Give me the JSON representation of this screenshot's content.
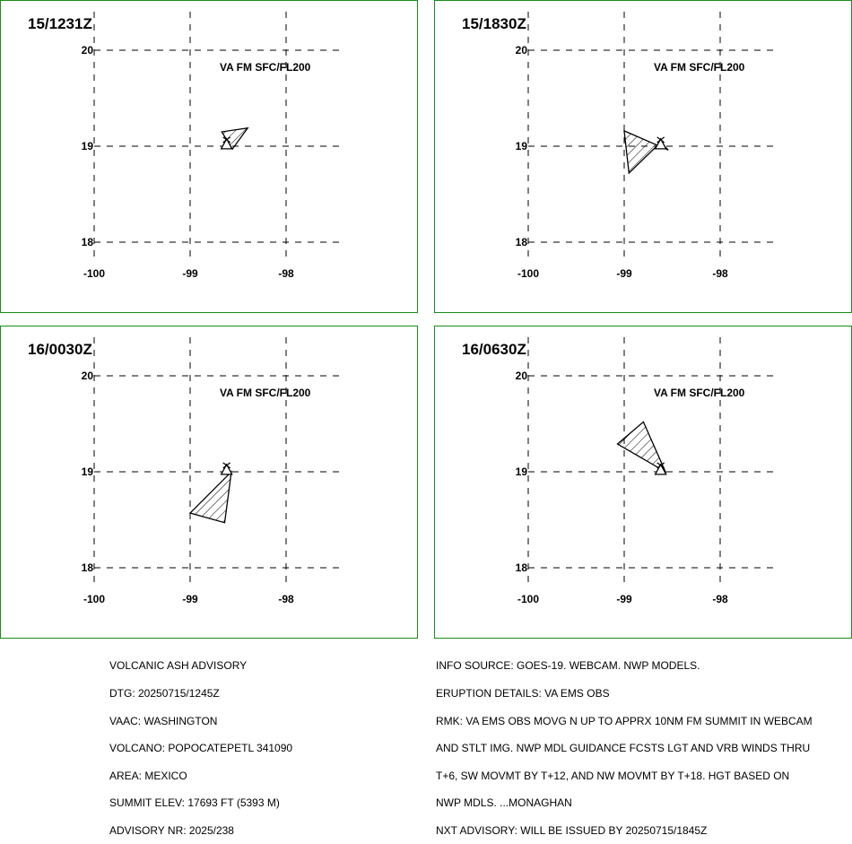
{
  "panels": [
    {
      "time": "15/1231Z",
      "level": "VA FM SFC/FL200",
      "polygon": [
        [
          -98.67,
          19.15
        ],
        [
          -98.4,
          19.19
        ],
        [
          -98.56,
          18.97
        ]
      ]
    },
    {
      "time": "15/1830Z",
      "level": "VA FM SFC/FL200",
      "polygon": [
        [
          -99.0,
          19.16
        ],
        [
          -98.54,
          18.96
        ],
        [
          -98.62,
          19.04
        ],
        [
          -98.95,
          18.72
        ]
      ]
    },
    {
      "time": "16/0030Z",
      "level": "VA FM SFC/FL200",
      "polygon": [
        [
          -98.57,
          19.0
        ],
        [
          -99.0,
          18.57
        ],
        [
          -98.64,
          18.47
        ]
      ]
    },
    {
      "time": "16/0630Z",
      "level": "VA FM SFC/FL200",
      "polygon": [
        [
          -98.57,
          19.0
        ],
        [
          -99.07,
          19.29
        ],
        [
          -98.8,
          19.52
        ]
      ]
    }
  ],
  "grid": {
    "lon_ticks": [
      "-100",
      "-99",
      "-98"
    ],
    "lat_ticks": [
      "20",
      "19",
      "18"
    ]
  },
  "volcano": {
    "lon": -98.62,
    "lat": 19.02
  },
  "advisory_left": [
    "VOLCANIC ASH ADVISORY",
    "DTG: 20250715/1245Z",
    "VAAC: WASHINGTON",
    "VOLCANO: POPOCATEPETL 341090",
    "AREA: MEXICO",
    "SUMMIT ELEV: 17693 FT (5393 M)",
    "ADVISORY NR: 2025/238"
  ],
  "advisory_right": [
    "INFO SOURCE: GOES-19. WEBCAM. NWP MODELS.",
    "ERUPTION DETAILS: VA EMS OBS",
    "RMK: VA EMS OBS MOVG N UP TO APPRX 10NM FM SUMMIT IN WEBCAM",
    "AND STLT IMG. NWP MDL GUIDANCE FCSTS LGT AND VRB WINDS THRU",
    "T+6, SW MOVMT BY T+12, AND NW MOVMT BY T+18. HGT BASED ON",
    "NWP MDLS. ...MONAGHAN",
    "NXT ADVISORY: WILL BE ISSUED BY 20250715/1845Z"
  ],
  "colors": {
    "panel_border": "#1a8c1a",
    "ink": "#000000"
  }
}
